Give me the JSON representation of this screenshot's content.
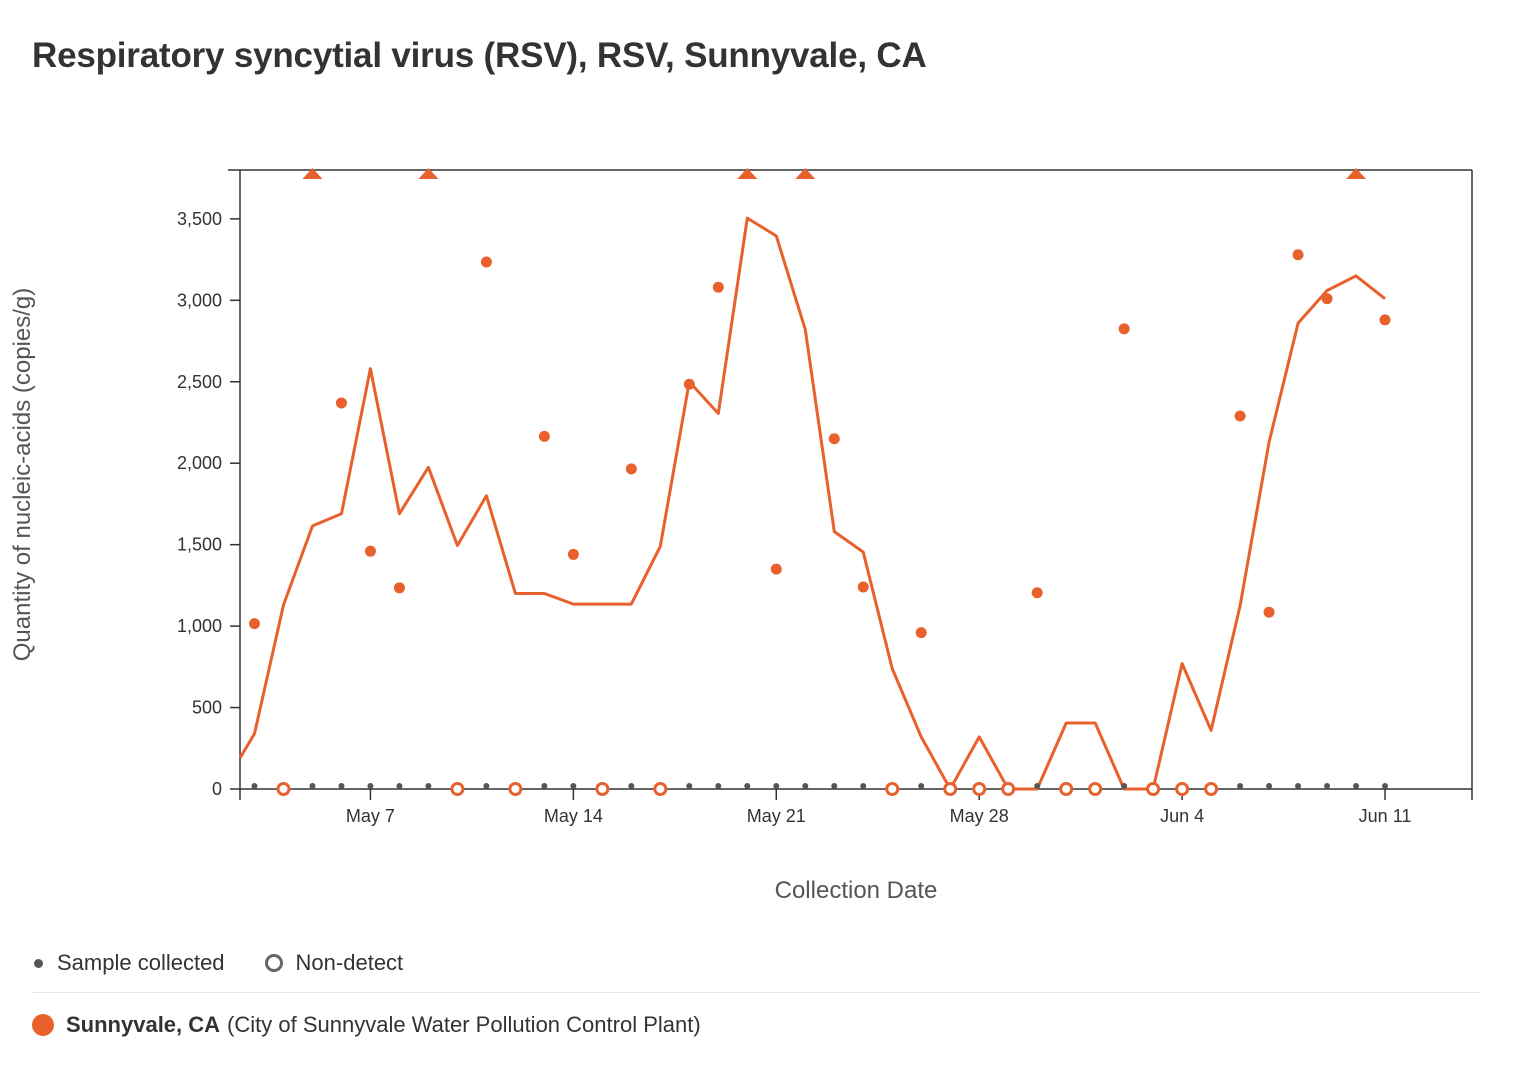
{
  "title": "Respiratory syncytial virus (RSV), RSV, Sunnyvale, CA",
  "colors": {
    "series": "#E8612C",
    "sample_dot": "#555555",
    "axis": "#333333"
  },
  "legend": {
    "sample_collected": "Sample collected",
    "non_detect": "Non-detect"
  },
  "site": {
    "name": "Sunnyvale, CA",
    "detail": "(City of Sunnyvale Water Pollution Control Plant)"
  },
  "chart_data": {
    "type": "line",
    "xlabel": "Collection Date",
    "ylabel": "Quantity of nucleic-acids (copies/g)",
    "xlim": [
      "2024-05-02 12:00",
      "2024-06-14"
    ],
    "ylim": [
      0,
      3800
    ],
    "yticks": [
      0,
      500,
      1000,
      1500,
      2000,
      2500,
      3000,
      3500
    ],
    "ytick_labels": [
      "0",
      "500",
      "1,000",
      "1,500",
      "2,000",
      "2,500",
      "3,000",
      "3,500"
    ],
    "xticks": [
      "2024-05-07",
      "2024-05-14",
      "2024-05-21",
      "2024-05-28",
      "2024-06-04",
      "2024-06-11"
    ],
    "xtick_labels": [
      "May 7",
      "May 14",
      "May 21",
      "May 28",
      "Jun 4",
      "Jun 11"
    ],
    "grid": false,
    "series": [
      {
        "kind": "samples",
        "points": [
          [
            "2024-05-03",
            1015
          ],
          [
            "2024-05-04",
            0
          ],
          [
            "2024-05-05",
            3800
          ],
          [
            "2024-05-06",
            2370
          ],
          [
            "2024-05-07",
            1460
          ],
          [
            "2024-05-08",
            1235
          ],
          [
            "2024-05-09",
            3800
          ],
          [
            "2024-05-10",
            0
          ],
          [
            "2024-05-11",
            3235
          ],
          [
            "2024-05-12",
            0
          ],
          [
            "2024-05-13",
            2165
          ],
          [
            "2024-05-14",
            1440
          ],
          [
            "2024-05-15",
            0
          ],
          [
            "2024-05-16",
            1965
          ],
          [
            "2024-05-17",
            0
          ],
          [
            "2024-05-18",
            2485
          ],
          [
            "2024-05-19",
            3080
          ],
          [
            "2024-05-20",
            3800
          ],
          [
            "2024-05-21",
            1350
          ],
          [
            "2024-05-22",
            3800
          ],
          [
            "2024-05-23",
            2150
          ],
          [
            "2024-05-24",
            1240
          ],
          [
            "2024-05-25",
            0
          ],
          [
            "2024-05-26",
            960
          ],
          [
            "2024-05-27",
            0
          ],
          [
            "2024-05-28",
            0
          ],
          [
            "2024-05-29",
            0
          ],
          [
            "2024-05-30",
            1205
          ],
          [
            "2024-05-31",
            0
          ],
          [
            "2024-06-01",
            0
          ],
          [
            "2024-06-02",
            2825
          ],
          [
            "2024-06-03",
            0
          ],
          [
            "2024-06-04",
            0
          ],
          [
            "2024-06-05",
            0
          ],
          [
            "2024-06-06",
            2290
          ],
          [
            "2024-06-07",
            1085
          ],
          [
            "2024-06-08",
            3280
          ],
          [
            "2024-06-09",
            3010
          ],
          [
            "2024-06-10",
            3800
          ],
          [
            "2024-06-11",
            2880
          ]
        ],
        "point_kinds": [
          "detect",
          "nondetect",
          "clipped",
          "detect",
          "detect",
          "detect",
          "clipped",
          "nondetect",
          "detect",
          "nondetect",
          "detect",
          "detect",
          "nondetect",
          "detect",
          "nondetect",
          "detect",
          "detect",
          "clipped",
          "detect",
          "clipped",
          "detect",
          "detect",
          "nondetect",
          "detect",
          "nondetect",
          "nondetect",
          "nondetect",
          "detect",
          "nondetect",
          "nondetect",
          "detect",
          "nondetect",
          "nondetect",
          "nondetect",
          "detect",
          "detect",
          "detect",
          "detect",
          "clipped",
          "detect"
        ]
      },
      {
        "kind": "trend",
        "points": [
          [
            "2024-05-02 12:00",
            190
          ],
          [
            "2024-05-03",
            340
          ],
          [
            "2024-05-04",
            1130
          ],
          [
            "2024-05-05",
            1615
          ],
          [
            "2024-05-06",
            1690
          ],
          [
            "2024-05-07",
            2580
          ],
          [
            "2024-05-08",
            1690
          ],
          [
            "2024-05-09",
            1975
          ],
          [
            "2024-05-10",
            1495
          ],
          [
            "2024-05-11",
            1800
          ],
          [
            "2024-05-12",
            1200
          ],
          [
            "2024-05-13",
            1200
          ],
          [
            "2024-05-14",
            1135
          ],
          [
            "2024-05-15",
            1135
          ],
          [
            "2024-05-16",
            1135
          ],
          [
            "2024-05-17",
            1490
          ],
          [
            "2024-05-18",
            2500
          ],
          [
            "2024-05-19",
            2305
          ],
          [
            "2024-05-20",
            3505
          ],
          [
            "2024-05-21",
            3395
          ],
          [
            "2024-05-22",
            2820
          ],
          [
            "2024-05-23",
            1580
          ],
          [
            "2024-05-24",
            1455
          ],
          [
            "2024-05-25",
            740
          ],
          [
            "2024-05-26",
            320
          ],
          [
            "2024-05-27",
            0
          ],
          [
            "2024-05-28",
            320
          ],
          [
            "2024-05-29",
            0
          ],
          [
            "2024-05-30",
            0
          ],
          [
            "2024-05-31",
            405
          ],
          [
            "2024-06-01",
            405
          ],
          [
            "2024-06-02",
            0
          ],
          [
            "2024-06-03",
            0
          ],
          [
            "2024-06-04",
            770
          ],
          [
            "2024-06-05",
            360
          ],
          [
            "2024-06-06",
            1125
          ],
          [
            "2024-06-07",
            2130
          ],
          [
            "2024-06-08",
            2860
          ],
          [
            "2024-06-09",
            3060
          ],
          [
            "2024-06-10",
            3150
          ],
          [
            "2024-06-11",
            3010
          ]
        ]
      }
    ]
  }
}
